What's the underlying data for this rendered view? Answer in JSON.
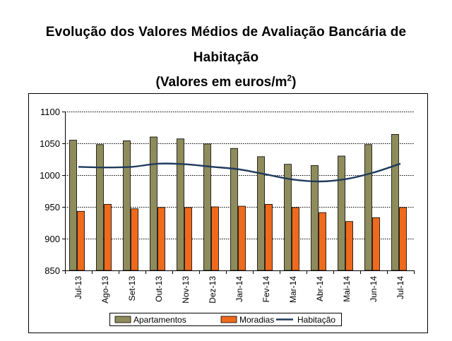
{
  "title": {
    "line1": "Evolução dos Valores Médios de Avaliação Bancária de",
    "line2": "Habitação",
    "subtitle_main": "(Valores em euros/m",
    "subtitle_sup": "2",
    "subtitle_end": ")"
  },
  "chart_data": {
    "type": "bar",
    "title": "Evolução dos Valores Médios de Avaliação Bancária de Habitação (Valores em euros/m2)",
    "xlabel": "",
    "ylabel": "",
    "categories": [
      "Jul-13",
      "Ago-13",
      "Set-13",
      "Out-13",
      "Nov-13",
      "Dez-13",
      "Jan-14",
      "Fev-14",
      "Mar-14",
      "Abr-14",
      "Mai-14",
      "Jun-14",
      "Jul-14"
    ],
    "series": [
      {
        "name": "Apartamentos",
        "kind": "bar",
        "color": "#8f8c5c",
        "values": [
          1055,
          1048,
          1054,
          1060,
          1057,
          1049,
          1042,
          1029,
          1017,
          1015,
          1030,
          1048,
          1064
        ]
      },
      {
        "name": "Moradias",
        "kind": "bar",
        "color": "#ef6a1c",
        "values": [
          943,
          954,
          947,
          949,
          949,
          950,
          951,
          954,
          949,
          941,
          927,
          933,
          949
        ]
      },
      {
        "name": "Habitação",
        "kind": "line",
        "color": "#1f3b5c",
        "values": [
          1013,
          1012,
          1013,
          1018,
          1017,
          1013,
          1009,
          1001,
          993,
          990,
          994,
          1004,
          1018
        ]
      }
    ],
    "ylim": [
      850,
      1100
    ],
    "yticks": [
      850,
      900,
      950,
      1000,
      1050,
      1100
    ],
    "grid": true,
    "legend": "bottom"
  }
}
